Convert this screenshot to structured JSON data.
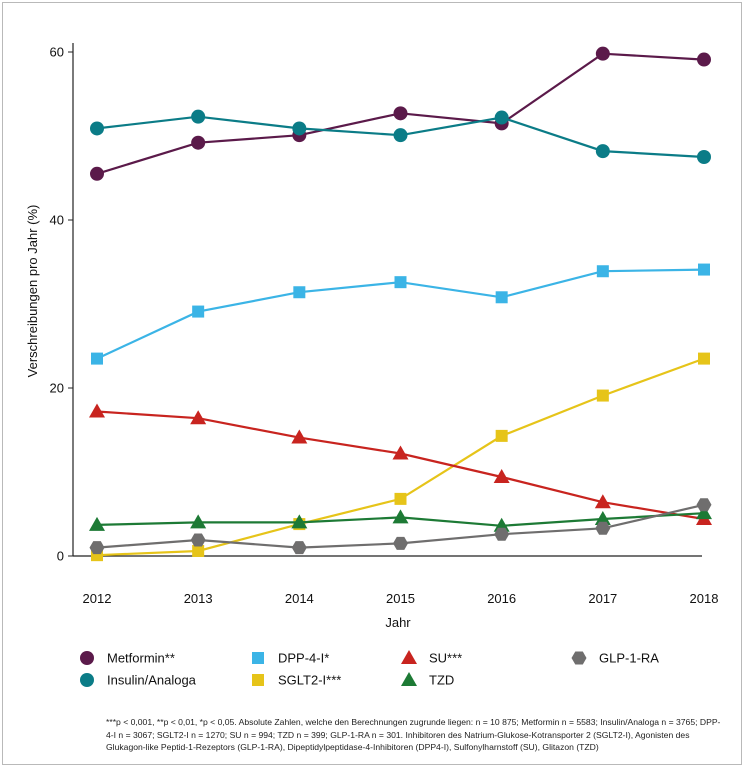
{
  "chart_data": {
    "type": "line",
    "xlabel": "Jahr",
    "ylabel": "Verschreibungen pro Jahr (%)",
    "x": [
      "2012",
      "2013",
      "2014",
      "2015",
      "2016",
      "2017",
      "2018"
    ],
    "ylim": [
      0,
      60
    ],
    "yticks": [
      0,
      20,
      40,
      60
    ],
    "grid": false,
    "legend_position": "bottom",
    "series": [
      {
        "name": "Metformin**",
        "marker": "circle",
        "color": "#5b1a4a",
        "values": [
          45.5,
          49.2,
          50.1,
          52.7,
          51.5,
          59.8,
          59.1
        ]
      },
      {
        "name": "Insulin/Analoga",
        "marker": "circle",
        "color": "#0b7c87",
        "values": [
          50.9,
          52.3,
          50.9,
          50.1,
          52.2,
          48.2,
          47.5
        ]
      },
      {
        "name": "DPP-4-I*",
        "marker": "square",
        "color": "#3bb4e6",
        "values": [
          23.5,
          29.1,
          31.4,
          32.6,
          30.8,
          33.9,
          34.1
        ]
      },
      {
        "name": "SGLT2-I***",
        "marker": "square",
        "color": "#e6c419",
        "values": [
          0.1,
          0.6,
          3.8,
          6.8,
          14.3,
          19.1,
          23.5
        ]
      },
      {
        "name": "SU***",
        "marker": "triangle",
        "color": "#c8241f",
        "values": [
          17.2,
          16.4,
          14.1,
          12.2,
          9.4,
          6.4,
          4.4
        ]
      },
      {
        "name": "TZD",
        "marker": "triangle",
        "color": "#1d7a35",
        "values": [
          3.7,
          4.0,
          4.0,
          4.6,
          3.6,
          4.4,
          5.1
        ]
      },
      {
        "name": "GLP-1-RA",
        "marker": "hexagon",
        "color": "#6f6e6e",
        "values": [
          1.0,
          1.9,
          1.0,
          1.5,
          2.6,
          3.3,
          6.1
        ]
      }
    ]
  },
  "footnote": "***p < 0,001, **p < 0,01, *p < 0,05. Absolute Zahlen, welche den Berechnungen zugrunde liegen: n = 10 875; Metformin n = 5583; Insulin/Analoga n = 3765; DPP-4-I n = 3067; SGLT2-I n = 1270; SU n = 994; TZD n = 399; GLP-1-RA n = 301. Inhibitoren des Natrium-Glukose-Kotransporter 2 (SGLT2-I), Agonisten des Glukagon-like Peptid-1-Rezeptors (GLP-1-RA), Dipeptidylpeptidase-4-Inhibitoren (DPP4-I), Sulfonylharnstoff (SU), Glitazon (TZD)"
}
